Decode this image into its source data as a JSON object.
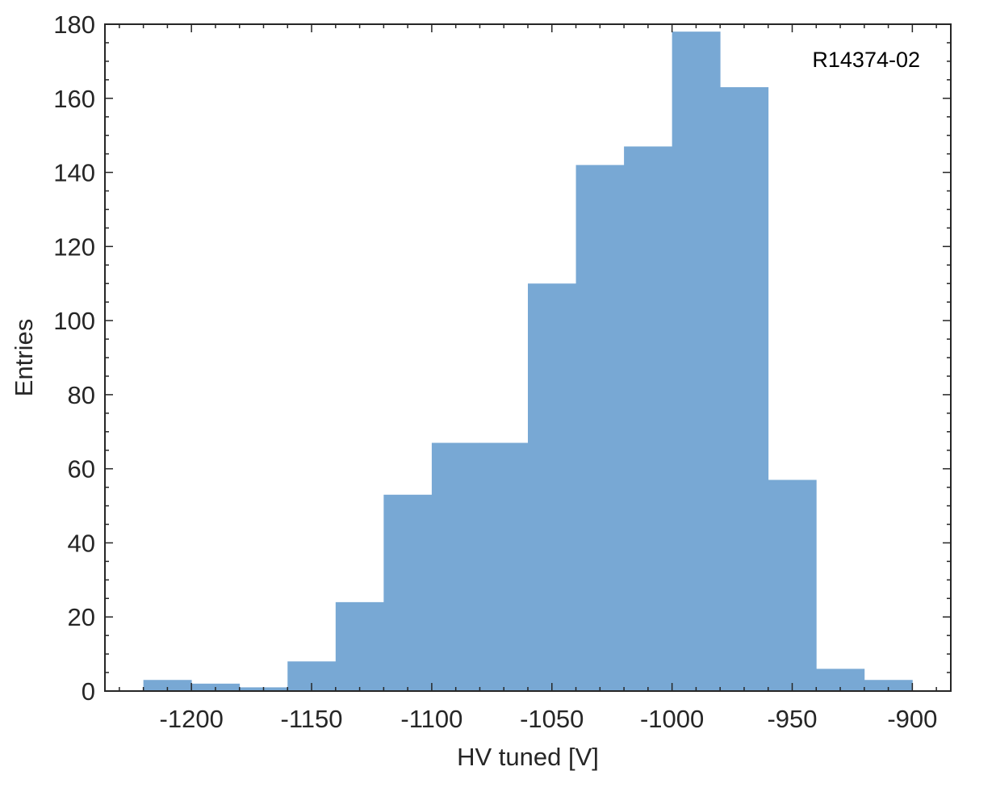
{
  "chart_data": {
    "type": "histogram",
    "bin_edges": [
      -1220,
      -1200,
      -1180,
      -1160,
      -1140,
      -1120,
      -1100,
      -1080,
      -1060,
      -1040,
      -1020,
      -1000,
      -980,
      -960,
      -940,
      -920,
      -900
    ],
    "values": [
      3,
      2,
      1,
      8,
      24,
      53,
      67,
      67,
      110,
      142,
      147,
      178,
      163,
      57,
      6,
      3
    ],
    "xlabel": "HV tuned [V]",
    "ylabel": "Entries",
    "xlim": [
      -1236,
      -884
    ],
    "ylim": [
      0,
      180
    ],
    "xticks": [
      -1200,
      -1150,
      -1100,
      -1050,
      -1000,
      -950,
      -900
    ],
    "yticks": [
      0,
      20,
      40,
      60,
      80,
      100,
      120,
      140,
      160,
      180
    ],
    "annotation": "R14374-02",
    "bar_color": "#78a8d4",
    "axis_color": "#262626",
    "grid": false
  }
}
